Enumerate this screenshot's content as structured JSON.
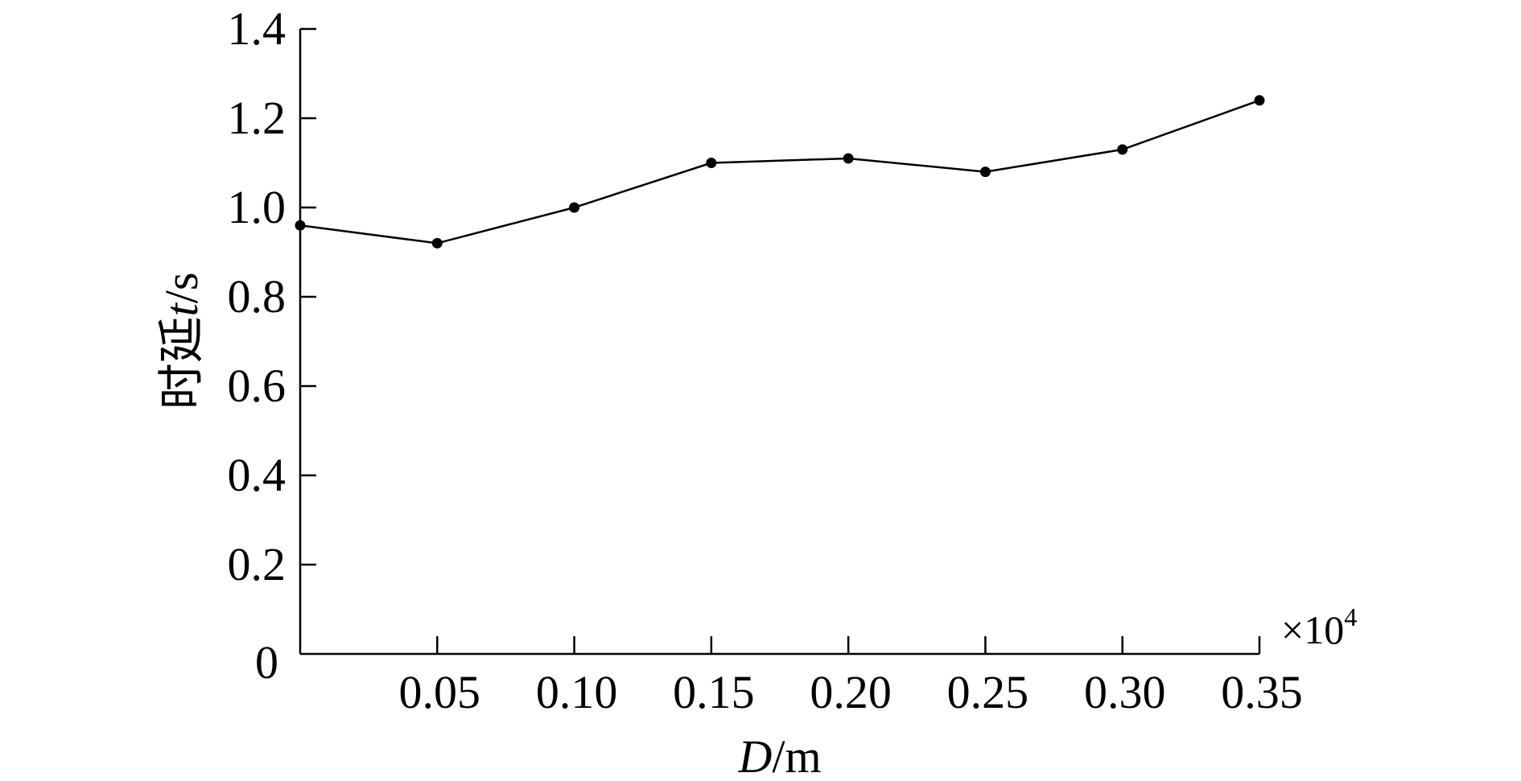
{
  "chart_data": {
    "type": "line",
    "title": "",
    "x": [
      0,
      0.05,
      0.1,
      0.15,
      0.2,
      0.25,
      0.3,
      0.35
    ],
    "series": [
      {
        "values": [
          0.96,
          0.92,
          1.0,
          1.1,
          1.11,
          1.08,
          1.13,
          1.24
        ],
        "color": "#000000"
      }
    ],
    "xlim": [
      0,
      0.35
    ],
    "ylim": [
      0,
      1.4
    ],
    "xticks": [
      "0.05",
      "0.10",
      "0.15",
      "0.20",
      "0.25",
      "0.30",
      "0.35"
    ],
    "yticks": [
      "0",
      "0.2",
      "0.4",
      "0.6",
      "0.8",
      "1.0",
      "1.2",
      "1.4"
    ],
    "xlabel_var": "D",
    "xlabel_unit": "/m",
    "ylabel_text": "时延",
    "ylabel_var": "t",
    "ylabel_unit": "/s",
    "multiplier_base": "×10",
    "multiplier_exp": "4",
    "grid": false,
    "legend": "none"
  }
}
